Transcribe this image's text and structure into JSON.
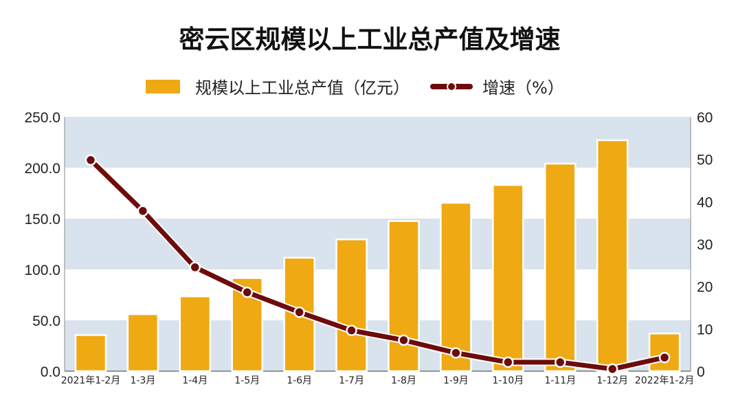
{
  "chart_data": {
    "type": "bar",
    "title": "密云区规模以上工业总产值及增速",
    "categories": [
      "2021年1-2月",
      "1-3月",
      "1-4月",
      "1-5月",
      "1-6月",
      "1-7月",
      "1-8月",
      "1-9月",
      "1-10月",
      "1-11月",
      "1-12月",
      "2022年1-2月"
    ],
    "series": [
      {
        "name": "规模以上工业总产值（亿元）",
        "type": "bar",
        "axis": "left",
        "color": "#EFA912",
        "values": [
          35.5,
          56.0,
          73.5,
          91.5,
          111.5,
          129.5,
          147.5,
          165.5,
          183.0,
          204.0,
          227.0,
          37.0
        ]
      },
      {
        "name": "增速（%）",
        "type": "line",
        "axis": "right",
        "color": "#6E0B0B",
        "values": [
          49.8,
          37.8,
          24.5,
          18.6,
          13.9,
          9.6,
          7.3,
          4.3,
          2.1,
          2.1,
          0.5,
          3.2
        ]
      }
    ],
    "ylim": [
      0,
      250
    ],
    "yticks": [
      "0.0",
      "50.0",
      "100.0",
      "150.0",
      "200.0",
      "250.0"
    ],
    "y2lim": [
      0,
      60
    ],
    "y2ticks": [
      "0",
      "10",
      "20",
      "30",
      "40",
      "50",
      "60"
    ],
    "legend_position": "top-center",
    "background_bands": [
      "#D9E3EE",
      "#FFFFFF"
    ]
  }
}
